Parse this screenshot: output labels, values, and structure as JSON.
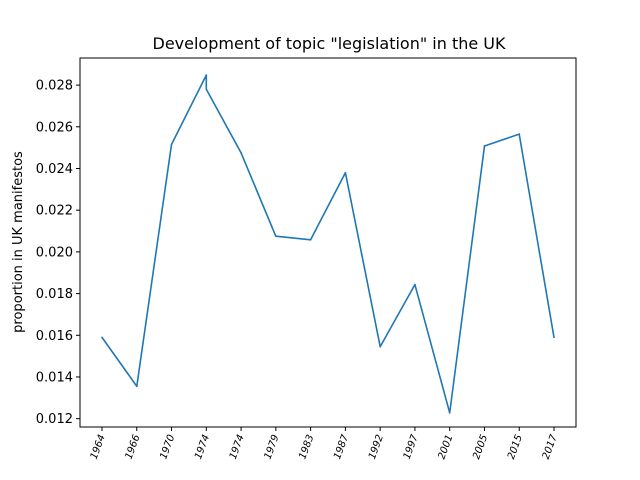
{
  "chart_data": {
    "type": "line",
    "title": "Development of topic \"legislation\" in the UK",
    "xlabel": "",
    "ylabel": "proportion in UK manifestos",
    "categories": [
      "1964",
      "1966",
      "1970",
      "1974",
      "1974",
      "1979",
      "1983",
      "1987",
      "1992",
      "1997",
      "2001",
      "2005",
      "2015",
      "2017"
    ],
    "series": [
      {
        "values": [
          0.0159,
          0.01355,
          0.02515,
          0.0278,
          0.02475,
          0.02075,
          0.02058,
          0.0238,
          0.01545,
          0.01843,
          0.01228,
          0.02508,
          0.02565,
          0.0159
        ],
        "extra_point": {
          "after_index": 2,
          "value": 0.02848
        },
        "color": "#1f77b4"
      }
    ],
    "ylim": [
      0.0116,
      0.0293
    ],
    "yticks": [
      0.012,
      0.014,
      0.016,
      0.018,
      0.02,
      0.022,
      0.024,
      0.026,
      0.028
    ],
    "ytick_labels": [
      "0.012",
      "0.014",
      "0.016",
      "0.018",
      "0.020",
      "0.022",
      "0.024",
      "0.026",
      "0.028"
    ],
    "grid": false,
    "legend": "none"
  }
}
